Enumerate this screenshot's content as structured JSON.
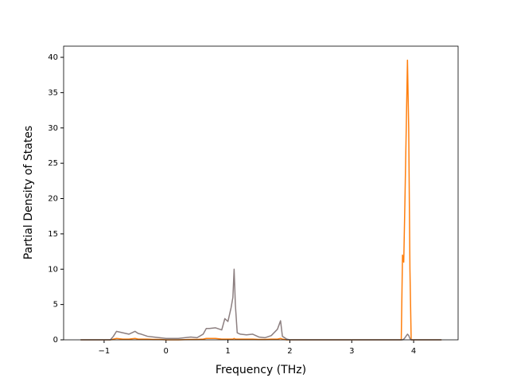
{
  "chart_data": {
    "type": "line",
    "xlabel": "Frequency (THz)",
    "ylabel": "Partial Density of States",
    "x": [
      -1.38,
      -0.9,
      -0.85,
      -0.8,
      -0.7,
      -0.6,
      -0.5,
      -0.45,
      -0.4,
      -0.3,
      -0.2,
      -0.1,
      0,
      0.2,
      0.4,
      0.5,
      0.6,
      0.65,
      0.7,
      0.8,
      0.9,
      0.95,
      1.0,
      1.05,
      1.08,
      1.1,
      1.12,
      1.15,
      1.2,
      1.3,
      1.4,
      1.5,
      1.6,
      1.7,
      1.8,
      1.85,
      1.88,
      1.95,
      2.0,
      3.0,
      3.78,
      3.8,
      3.82,
      3.84,
      3.86,
      3.9,
      3.92,
      3.94,
      3.96,
      3.98,
      4.0,
      4.45
    ],
    "series": [
      {
        "color": "#ff7f0e",
        "values": [
          0,
          0,
          0.1,
          0.2,
          0.1,
          0.1,
          0.2,
          0.1,
          0.1,
          0.1,
          0.05,
          0.05,
          0,
          0,
          0.05,
          0.05,
          0.1,
          0.2,
          0.2,
          0.2,
          0.1,
          0.1,
          0.1,
          0.1,
          0.1,
          0.2,
          0.1,
          0.1,
          0.1,
          0.1,
          0.1,
          0.05,
          0.05,
          0.1,
          0.1,
          0.2,
          0.1,
          0,
          0,
          0,
          0,
          0,
          12,
          11,
          20,
          39.6,
          30,
          10,
          0,
          0,
          0,
          0
        ]
      },
      {
        "color": "#8c7f80",
        "values": [
          0,
          0,
          0.5,
          1.2,
          1.0,
          0.8,
          1.2,
          0.9,
          0.8,
          0.5,
          0.4,
          0.3,
          0.2,
          0.2,
          0.4,
          0.3,
          0.8,
          1.6,
          1.6,
          1.7,
          1.4,
          3.0,
          2.6,
          4.5,
          6,
          10,
          5,
          1.0,
          0.8,
          0.7,
          0.8,
          0.4,
          0.3,
          0.6,
          1.5,
          2.7,
          0.5,
          0.1,
          0,
          0,
          0,
          0,
          0,
          0.1,
          0.3,
          0.8,
          0.6,
          0.2,
          0,
          0,
          0,
          0
        ]
      }
    ],
    "xlim": [
      -1.654,
      4.718
    ],
    "ylim": [
      0,
      41.58
    ],
    "xticks": [
      {
        "value": -1,
        "label": "−1"
      },
      0,
      1,
      2,
      3,
      4
    ],
    "yticks": [
      0,
      5,
      10,
      15,
      20,
      25,
      30,
      35,
      40
    ]
  }
}
